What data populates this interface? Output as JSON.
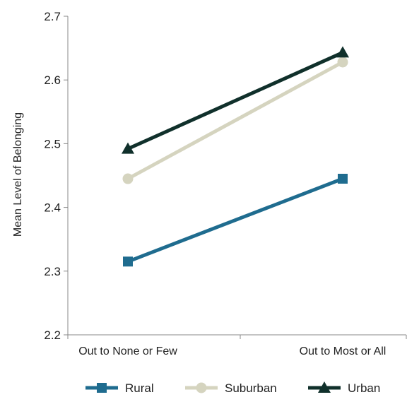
{
  "chart_data": {
    "type": "line",
    "title": "",
    "xlabel": "",
    "ylabel": "Mean Level of Belonging",
    "ylim": [
      2.2,
      2.7
    ],
    "yticks": [
      "2.2",
      "2.3",
      "2.4",
      "2.5",
      "2.6",
      "2.7"
    ],
    "categories": [
      "Out to None or Few",
      "Out to Most or All"
    ],
    "grid": false,
    "legend_position": "bottom",
    "series": [
      {
        "name": "Rural",
        "values": [
          2.315,
          2.445
        ],
        "color": "#1f6c8f",
        "marker": "square"
      },
      {
        "name": "Suburban",
        "values": [
          2.445,
          2.628
        ],
        "color": "#d5d4bf",
        "marker": "circle"
      },
      {
        "name": "Urban",
        "values": [
          2.492,
          2.643
        ],
        "color": "#10302b",
        "marker": "triangle"
      }
    ]
  }
}
